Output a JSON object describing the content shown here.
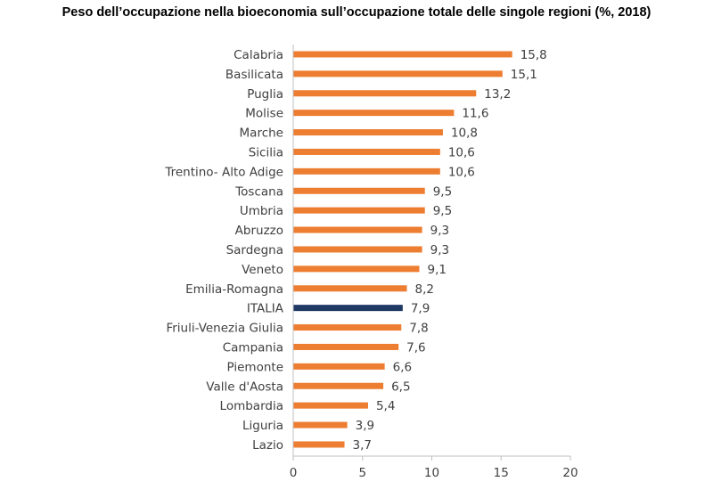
{
  "chart_data": {
    "type": "bar",
    "orientation": "horizontal",
    "title": "Peso dell’occupazione nella bioeconomia sull’occupazione totale delle singole regioni (%, 2018)",
    "categories": [
      "Calabria",
      "Basilicata",
      "Puglia",
      "Molise",
      "Marche",
      "Sicilia",
      "Trentino- Alto Adige",
      "Toscana",
      "Umbria",
      "Abruzzo",
      "Sardegna",
      "Veneto",
      "Emilia-Romagna",
      "ITALIA",
      "Friuli-Venezia Giulia",
      "Campania",
      "Piemonte",
      "Valle d'Aosta",
      "Lombardia",
      "Liguria",
      "Lazio"
    ],
    "values": [
      15.8,
      15.1,
      13.2,
      11.6,
      10.8,
      10.6,
      10.6,
      9.5,
      9.5,
      9.3,
      9.3,
      9.1,
      8.2,
      7.9,
      7.8,
      7.6,
      6.6,
      6.5,
      5.4,
      3.9,
      3.7
    ],
    "value_labels": [
      "15,8",
      "15,1",
      "13,2",
      "11,6",
      "10,8",
      "10,6",
      "10,6",
      "9,5",
      "9,5",
      "9,3",
      "9,3",
      "9,1",
      "8,2",
      "7,9",
      "7,8",
      "7,6",
      "6,6",
      "6,5",
      "5,4",
      "3,9",
      "3,7"
    ],
    "xlim": [
      0,
      20
    ],
    "xticks": [
      0,
      5,
      10,
      15,
      20
    ],
    "grid": false,
    "colors": {
      "default": "#ED7D31",
      "highlight": "#1F3864",
      "highlight_category": "ITALIA"
    }
  }
}
